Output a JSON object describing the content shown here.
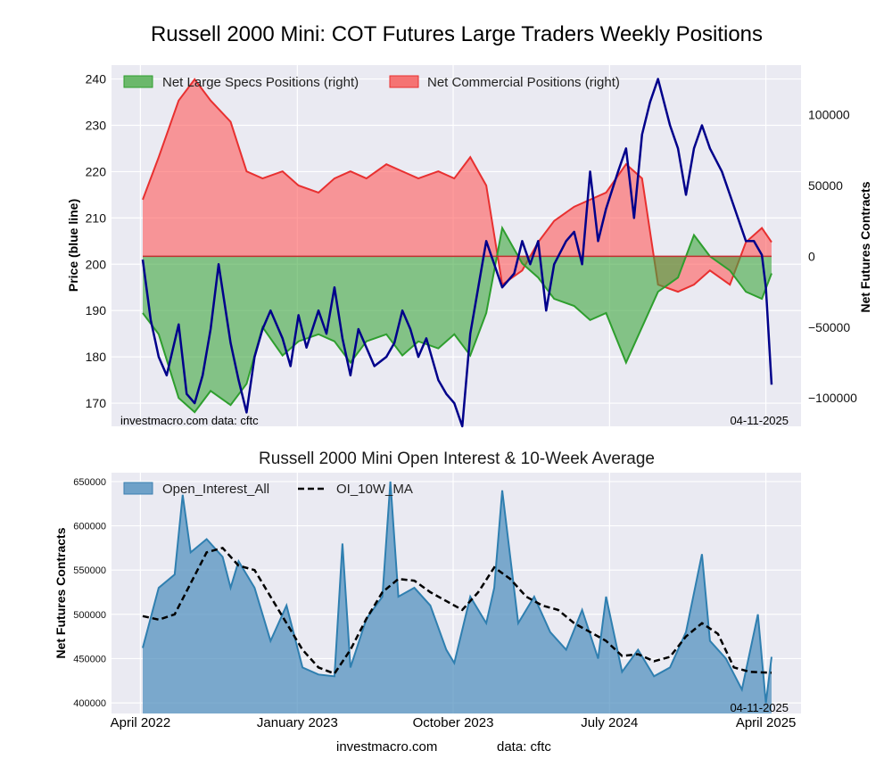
{
  "chart_data": [
    {
      "type": "area",
      "title": "Russell 2000 Mini: COT Futures Large Traders Weekly Positions",
      "ylabel_left": "Price (blue line)",
      "ylabel_right": "Net Futures Contracts",
      "ylim_left": [
        165,
        243
      ],
      "ylim_right": [
        -120000,
        135000
      ],
      "left_ticks": [
        "170",
        "180",
        "190",
        "200",
        "210",
        "220",
        "230",
        "240"
      ],
      "left_tick_values": [
        170,
        180,
        190,
        200,
        210,
        220,
        230,
        240
      ],
      "right_ticks": [
        "100000",
        "50000",
        "0",
        "−50000",
        "−100000"
      ],
      "right_tick_values": [
        100000,
        50000,
        0,
        -50000,
        -100000
      ],
      "x_range": [
        "2022-04-05",
        "2025-04-11"
      ],
      "legend": [
        {
          "label": "Net Large Specs Positions (right)",
          "color": "#2e9e2e"
        },
        {
          "label": "Net Commercial Positions (right)",
          "color": "#f04040"
        }
      ],
      "legend_position": "top-left",
      "grid": true,
      "watermark_left": "investmacro.com    data: cftc",
      "watermark_right": "04-11-2025",
      "series": [
        {
          "name": "Net Large Specs Positions (right)",
          "axis": "right",
          "x": [
            "2022-04-05",
            "2022-05-03",
            "2022-06-07",
            "2022-07-05",
            "2022-08-02",
            "2022-09-06",
            "2022-10-04",
            "2022-11-01",
            "2022-12-06",
            "2023-01-03",
            "2023-02-07",
            "2023-03-07",
            "2023-04-04",
            "2023-05-02",
            "2023-06-06",
            "2023-07-04",
            "2023-08-01",
            "2023-09-05",
            "2023-10-03",
            "2023-10-31",
            "2023-11-28",
            "2023-12-26",
            "2024-01-30",
            "2024-02-27",
            "2024-03-26",
            "2024-04-30",
            "2024-05-28",
            "2024-06-25",
            "2024-07-30",
            "2024-08-27",
            "2024-09-24",
            "2024-10-29",
            "2024-11-26",
            "2024-12-24",
            "2025-01-28",
            "2025-02-25",
            "2025-03-25",
            "2025-04-11"
          ],
          "values": [
            -40000,
            -55000,
            -100000,
            -110000,
            -95000,
            -105000,
            -90000,
            -50000,
            -70000,
            -60000,
            -55000,
            -60000,
            -75000,
            -60000,
            -55000,
            -70000,
            -60000,
            -65000,
            -55000,
            -70000,
            -40000,
            20000,
            -5000,
            -15000,
            -30000,
            -35000,
            -45000,
            -40000,
            -75000,
            -50000,
            -25000,
            -15000,
            15000,
            0,
            -10000,
            -25000,
            -30000,
            -12000
          ]
        },
        {
          "name": "Net Commercial Positions (right)",
          "axis": "right",
          "x": [
            "2022-04-05",
            "2022-05-03",
            "2022-06-07",
            "2022-07-05",
            "2022-08-02",
            "2022-09-06",
            "2022-10-04",
            "2022-11-01",
            "2022-12-06",
            "2023-01-03",
            "2023-02-07",
            "2023-03-07",
            "2023-04-04",
            "2023-05-02",
            "2023-06-06",
            "2023-07-04",
            "2023-08-01",
            "2023-09-05",
            "2023-10-03",
            "2023-10-31",
            "2023-11-28",
            "2023-12-26",
            "2024-01-30",
            "2024-02-27",
            "2024-03-26",
            "2024-04-30",
            "2024-05-28",
            "2024-06-25",
            "2024-07-30",
            "2024-08-27",
            "2024-09-24",
            "2024-10-29",
            "2024-11-26",
            "2024-12-24",
            "2025-01-28",
            "2025-02-25",
            "2025-03-25",
            "2025-04-11"
          ],
          "values": [
            40000,
            70000,
            110000,
            125000,
            110000,
            95000,
            60000,
            55000,
            60000,
            50000,
            45000,
            55000,
            60000,
            55000,
            65000,
            60000,
            55000,
            60000,
            55000,
            70000,
            50000,
            -20000,
            -10000,
            10000,
            25000,
            35000,
            40000,
            45000,
            65000,
            55000,
            -20000,
            -25000,
            -20000,
            -10000,
            -20000,
            10000,
            20000,
            10000
          ]
        },
        {
          "name": "Price",
          "axis": "left",
          "color": "#00008b",
          "x": [
            "2022-04-05",
            "2022-04-19",
            "2022-05-03",
            "2022-05-17",
            "2022-06-07",
            "2022-06-21",
            "2022-07-05",
            "2022-07-19",
            "2022-08-02",
            "2022-08-16",
            "2022-09-06",
            "2022-09-20",
            "2022-10-04",
            "2022-10-18",
            "2022-11-01",
            "2022-11-15",
            "2022-12-06",
            "2022-12-20",
            "2023-01-03",
            "2023-01-17",
            "2023-02-07",
            "2023-02-21",
            "2023-03-07",
            "2023-03-21",
            "2023-04-04",
            "2023-04-18",
            "2023-05-02",
            "2023-05-16",
            "2023-06-06",
            "2023-06-20",
            "2023-07-04",
            "2023-07-18",
            "2023-08-01",
            "2023-08-15",
            "2023-09-05",
            "2023-09-19",
            "2023-10-03",
            "2023-10-17",
            "2023-10-31",
            "2023-11-14",
            "2023-11-28",
            "2023-12-12",
            "2023-12-26",
            "2024-01-16",
            "2024-01-30",
            "2024-02-13",
            "2024-02-27",
            "2024-03-12",
            "2024-03-26",
            "2024-04-16",
            "2024-04-30",
            "2024-05-14",
            "2024-05-28",
            "2024-06-11",
            "2024-06-25",
            "2024-07-16",
            "2024-07-30",
            "2024-08-13",
            "2024-08-27",
            "2024-09-10",
            "2024-09-24",
            "2024-10-15",
            "2024-10-29",
            "2024-11-12",
            "2024-11-26",
            "2024-12-10",
            "2024-12-24",
            "2025-01-14",
            "2025-01-28",
            "2025-02-11",
            "2025-02-25",
            "2025-03-11",
            "2025-03-25",
            "2025-04-01",
            "2025-04-11"
          ],
          "values": [
            201,
            188,
            180,
            176,
            187,
            172,
            170,
            176,
            186,
            200,
            183,
            175,
            168,
            180,
            186,
            190,
            184,
            178,
            189,
            182,
            190,
            185,
            195,
            184,
            176,
            186,
            182,
            178,
            180,
            183,
            190,
            186,
            180,
            184,
            175,
            172,
            170,
            165,
            185,
            195,
            205,
            200,
            195,
            198,
            205,
            200,
            205,
            190,
            200,
            205,
            207,
            200,
            220,
            205,
            212,
            220,
            225,
            210,
            228,
            235,
            240,
            230,
            225,
            215,
            225,
            230,
            225,
            220,
            215,
            210,
            205,
            205,
            202,
            195,
            174
          ]
        }
      ]
    },
    {
      "type": "area",
      "title": "Russell 2000 Mini Open Interest & 10-Week Average",
      "ylabel": "Net Futures Contracts",
      "ylim": [
        388000,
        660000
      ],
      "y_ticks": [
        "400000",
        "450000",
        "500000",
        "550000",
        "600000",
        "650000"
      ],
      "y_tick_values": [
        400000,
        450000,
        500000,
        550000,
        600000,
        650000
      ],
      "x_range": [
        "2022-04-05",
        "2025-04-11"
      ],
      "x_ticks": [
        "April 2022",
        "January 2023",
        "October 2023",
        "July 2024",
        "April 2025"
      ],
      "x_tick_dates": [
        "2022-04-01",
        "2023-01-01",
        "2023-10-01",
        "2024-07-01",
        "2025-04-01"
      ],
      "legend": [
        {
          "label": "Open_Interest_All",
          "color": "#5b96bf"
        },
        {
          "label": "OI_10W_MA",
          "color": "#000000"
        }
      ],
      "legend_position": "top-left",
      "grid": true,
      "watermark_right": "04-11-2025",
      "series": [
        {
          "name": "Open_Interest_All",
          "x": [
            "2022-04-05",
            "2022-05-03",
            "2022-05-31",
            "2022-06-14",
            "2022-06-28",
            "2022-07-26",
            "2022-08-23",
            "2022-09-06",
            "2022-09-20",
            "2022-10-18",
            "2022-11-15",
            "2022-12-13",
            "2023-01-10",
            "2023-02-07",
            "2023-03-07",
            "2023-03-21",
            "2023-04-04",
            "2023-05-02",
            "2023-05-30",
            "2023-06-13",
            "2023-06-27",
            "2023-07-25",
            "2023-08-22",
            "2023-09-19",
            "2023-10-03",
            "2023-10-31",
            "2023-11-28",
            "2023-12-12",
            "2023-12-26",
            "2024-01-23",
            "2024-02-20",
            "2024-03-19",
            "2024-04-16",
            "2024-05-14",
            "2024-06-11",
            "2024-06-25",
            "2024-07-23",
            "2024-08-20",
            "2024-09-17",
            "2024-10-15",
            "2024-11-12",
            "2024-12-10",
            "2024-12-24",
            "2025-01-21",
            "2025-02-18",
            "2025-03-18",
            "2025-04-01",
            "2025-04-11"
          ],
          "values": [
            462000,
            530000,
            545000,
            635000,
            570000,
            585000,
            565000,
            530000,
            560000,
            530000,
            470000,
            510000,
            440000,
            432000,
            430000,
            580000,
            440000,
            495000,
            520000,
            650000,
            520000,
            530000,
            510000,
            460000,
            445000,
            520000,
            490000,
            530000,
            640000,
            490000,
            520000,
            480000,
            460000,
            505000,
            450000,
            520000,
            435000,
            460000,
            430000,
            440000,
            480000,
            568000,
            470000,
            450000,
            415000,
            500000,
            400000,
            452000
          ]
        },
        {
          "name": "OI_10W_MA",
          "x": [
            "2022-04-05",
            "2022-05-03",
            "2022-05-31",
            "2022-06-28",
            "2022-07-26",
            "2022-08-23",
            "2022-09-20",
            "2022-10-18",
            "2022-11-15",
            "2022-12-13",
            "2023-01-10",
            "2023-02-07",
            "2023-03-07",
            "2023-04-04",
            "2023-05-02",
            "2023-05-30",
            "2023-06-27",
            "2023-07-25",
            "2023-08-22",
            "2023-09-19",
            "2023-10-17",
            "2023-11-14",
            "2023-12-12",
            "2024-01-09",
            "2024-02-06",
            "2024-03-05",
            "2024-04-02",
            "2024-04-30",
            "2024-05-28",
            "2024-06-25",
            "2024-07-23",
            "2024-08-20",
            "2024-09-17",
            "2024-10-15",
            "2024-11-12",
            "2024-12-10",
            "2025-01-07",
            "2025-02-04",
            "2025-03-04",
            "2025-04-11"
          ],
          "values": [
            498000,
            494000,
            500000,
            535000,
            570000,
            575000,
            555000,
            550000,
            520000,
            490000,
            460000,
            440000,
            433000,
            460000,
            495000,
            525000,
            540000,
            538000,
            525000,
            515000,
            505000,
            525000,
            553000,
            540000,
            520000,
            510000,
            505000,
            490000,
            480000,
            470000,
            453000,
            455000,
            447000,
            452000,
            475000,
            490000,
            478000,
            440000,
            435000,
            434000
          ]
        }
      ]
    }
  ],
  "footer": {
    "source_left": "investmacro.com",
    "source_right": "data: cftc"
  }
}
